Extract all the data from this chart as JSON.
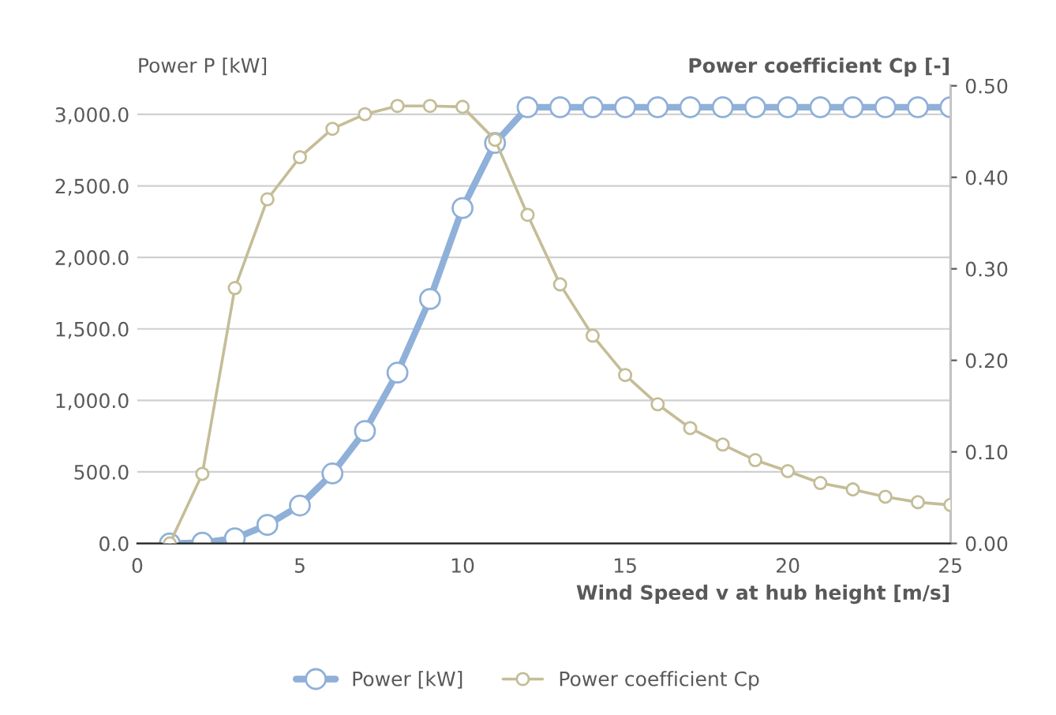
{
  "chart_data": {
    "type": "line",
    "ylabel": "Power P [kW]",
    "y2label": "Power coefficient Cp [-]",
    "xlabel": "Wind Speed v at hub height [m/s]",
    "x": [
      1,
      2,
      3,
      4,
      5,
      6,
      7,
      8,
      9,
      10,
      11,
      12,
      13,
      14,
      15,
      16,
      17,
      18,
      19,
      20,
      21,
      22,
      23,
      24,
      25
    ],
    "series": [
      {
        "name": "Power [kW]",
        "color": "#8fb0d8",
        "values": [
          0,
          5,
          36,
          129,
          265,
          489,
          786,
          1194,
          1709,
          2345,
          2800,
          3050,
          3050,
          3050,
          3050,
          3050,
          3050,
          3050,
          3050,
          3050,
          3050,
          3050,
          3050,
          3050,
          3050
        ]
      },
      {
        "name": "Power coefficient Cp",
        "color": "#c4bd97",
        "axis": "y2",
        "values": [
          0,
          0.076,
          0.279,
          0.376,
          0.422,
          0.453,
          0.469,
          0.478,
          0.478,
          0.477,
          0.441,
          0.359,
          0.283,
          0.227,
          0.184,
          0.152,
          0.126,
          0.108,
          0.091,
          0.079,
          0.066,
          0.059,
          0.051,
          0.045,
          0.042
        ]
      }
    ],
    "xlim": [
      0,
      25
    ],
    "xticks": [
      0,
      5,
      10,
      15,
      20,
      25
    ],
    "ylim": [
      0,
      3200
    ],
    "yticks": [
      {
        "value": 0,
        "label": "0.0"
      },
      {
        "value": 500,
        "label": "500.0"
      },
      {
        "value": 1000,
        "label": "1,000.0"
      },
      {
        "value": 1500,
        "label": "1,500.0"
      },
      {
        "value": 2000,
        "label": "2,000.0"
      },
      {
        "value": 2500,
        "label": "2,500.0"
      },
      {
        "value": 3000,
        "label": "3,000.0"
      }
    ],
    "y2lim": [
      0,
      0.5
    ],
    "y2ticks": [
      {
        "value": 0,
        "label": "0.00"
      },
      {
        "value": 0.1,
        "label": "0.10"
      },
      {
        "value": 0.2,
        "label": "0.20"
      },
      {
        "value": 0.3,
        "label": "0.30"
      },
      {
        "value": 0.4,
        "label": "0.40"
      },
      {
        "value": 0.5,
        "label": "0.50"
      }
    ],
    "grid": "y",
    "legend": "bottom",
    "marker": "circle",
    "line_style": "solid"
  }
}
